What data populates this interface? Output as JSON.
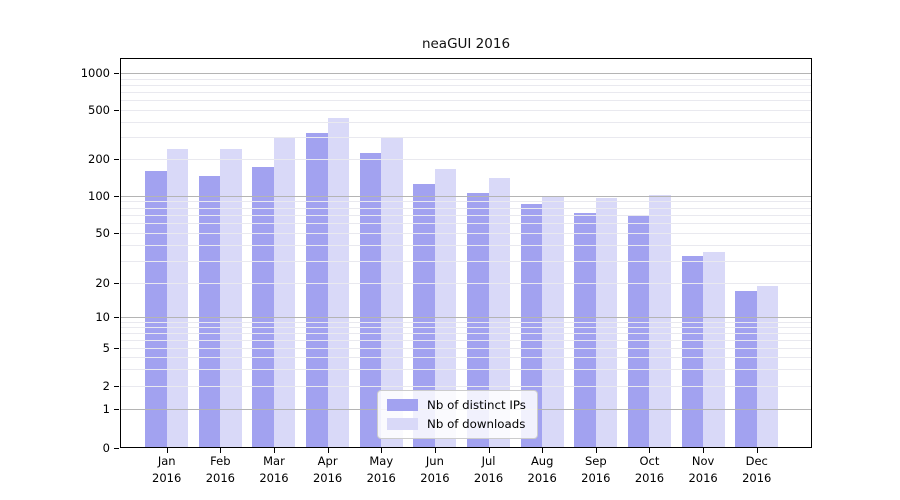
{
  "title": "neaGUI 2016",
  "chart_data": {
    "type": "bar",
    "title": "neaGUI 2016",
    "yscale": "symlog",
    "grid": true,
    "ylim": [
      0,
      1300
    ],
    "y_tick_labels": [
      "0",
      "1",
      "2",
      "5",
      "10",
      "20",
      "50",
      "100",
      "200",
      "500",
      "1000"
    ],
    "x_months": [
      "Jan",
      "Feb",
      "Mar",
      "Apr",
      "May",
      "Jun",
      "Jul",
      "Aug",
      "Sep",
      "Oct",
      "Nov",
      "Dec"
    ],
    "x_year": "2016",
    "categories": [
      "Jan 2016",
      "Feb 2016",
      "Mar 2016",
      "Apr 2016",
      "May 2016",
      "Jun 2016",
      "Jul 2016",
      "Aug 2016",
      "Sep 2016",
      "Oct 2016",
      "Nov 2016",
      "Dec 2016"
    ],
    "series": [
      {
        "name": "Nb of distinct IPs",
        "color": "#a2a2f0",
        "values": [
          160,
          145,
          172,
          325,
          225,
          124,
          105,
          85,
          72,
          70,
          33,
          17
        ]
      },
      {
        "name": "Nb of downloads",
        "color": "#d9d9f8",
        "values": [
          240,
          240,
          300,
          430,
          295,
          165,
          140,
          100,
          96,
          102,
          35,
          19
        ]
      }
    ],
    "legend_position": "lower center"
  },
  "colors": {
    "major_grid": "#b4b4b4",
    "minor_grid": "#e9e9ef",
    "spine": "#000000",
    "background": "#ffffff"
  }
}
